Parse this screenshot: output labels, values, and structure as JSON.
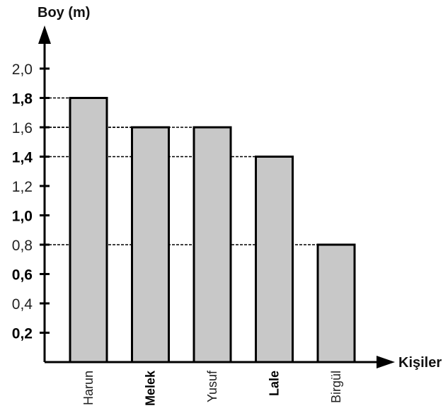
{
  "chart_data": {
    "type": "bar",
    "ylabel": "Boy (m)",
    "xlabel": "Kişiler",
    "categories": [
      "Harun",
      "Melek",
      "Yusuf",
      "Lale",
      "Birgül"
    ],
    "values": [
      1.8,
      1.6,
      1.6,
      1.4,
      0.8
    ],
    "ylim": [
      0,
      2.0
    ],
    "y_ticks": [
      {
        "value": 0.2,
        "label": "0,2",
        "bold": true
      },
      {
        "value": 0.4,
        "label": "0,4",
        "bold": false
      },
      {
        "value": 0.6,
        "label": "0,6",
        "bold": true
      },
      {
        "value": 0.8,
        "label": "0,8",
        "bold": false
      },
      {
        "value": 1.0,
        "label": "1,0",
        "bold": true
      },
      {
        "value": 1.2,
        "label": "1,2",
        "bold": false
      },
      {
        "value": 1.4,
        "label": "1,4",
        "bold": true
      },
      {
        "value": 1.6,
        "label": "1,6",
        "bold": false
      },
      {
        "value": 1.8,
        "label": "1,8",
        "bold": true
      },
      {
        "value": 2.0,
        "label": "2,0",
        "bold": false
      }
    ],
    "bold_categories": [
      "Melek",
      "Lale"
    ],
    "bar_color": "#c8c8c8",
    "grid": false,
    "guide_lines": "dashed lines from bar tops to y-axis"
  }
}
